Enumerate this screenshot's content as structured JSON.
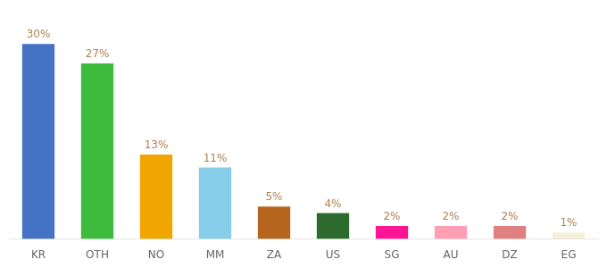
{
  "chart_data": {
    "type": "bar",
    "categories": [
      "KR",
      "OTH",
      "NO",
      "MM",
      "ZA",
      "US",
      "SG",
      "AU",
      "DZ",
      "EG"
    ],
    "values": [
      30,
      27,
      13,
      11,
      5,
      4,
      2,
      2,
      2,
      1
    ],
    "value_labels": [
      "30%",
      "27%",
      "13%",
      "11%",
      "5%",
      "4%",
      "2%",
      "2%",
      "2%",
      "1%"
    ],
    "colors": [
      "#4472c4",
      "#3dbb3d",
      "#f0a500",
      "#87ceeb",
      "#b5651d",
      "#2d6a2d",
      "#ff1493",
      "#ff9eb5",
      "#e08080",
      "#f5f0d8"
    ],
    "ylim": [
      0,
      34
    ],
    "grid": false,
    "data_labels": true,
    "tick_labels": "x"
  }
}
